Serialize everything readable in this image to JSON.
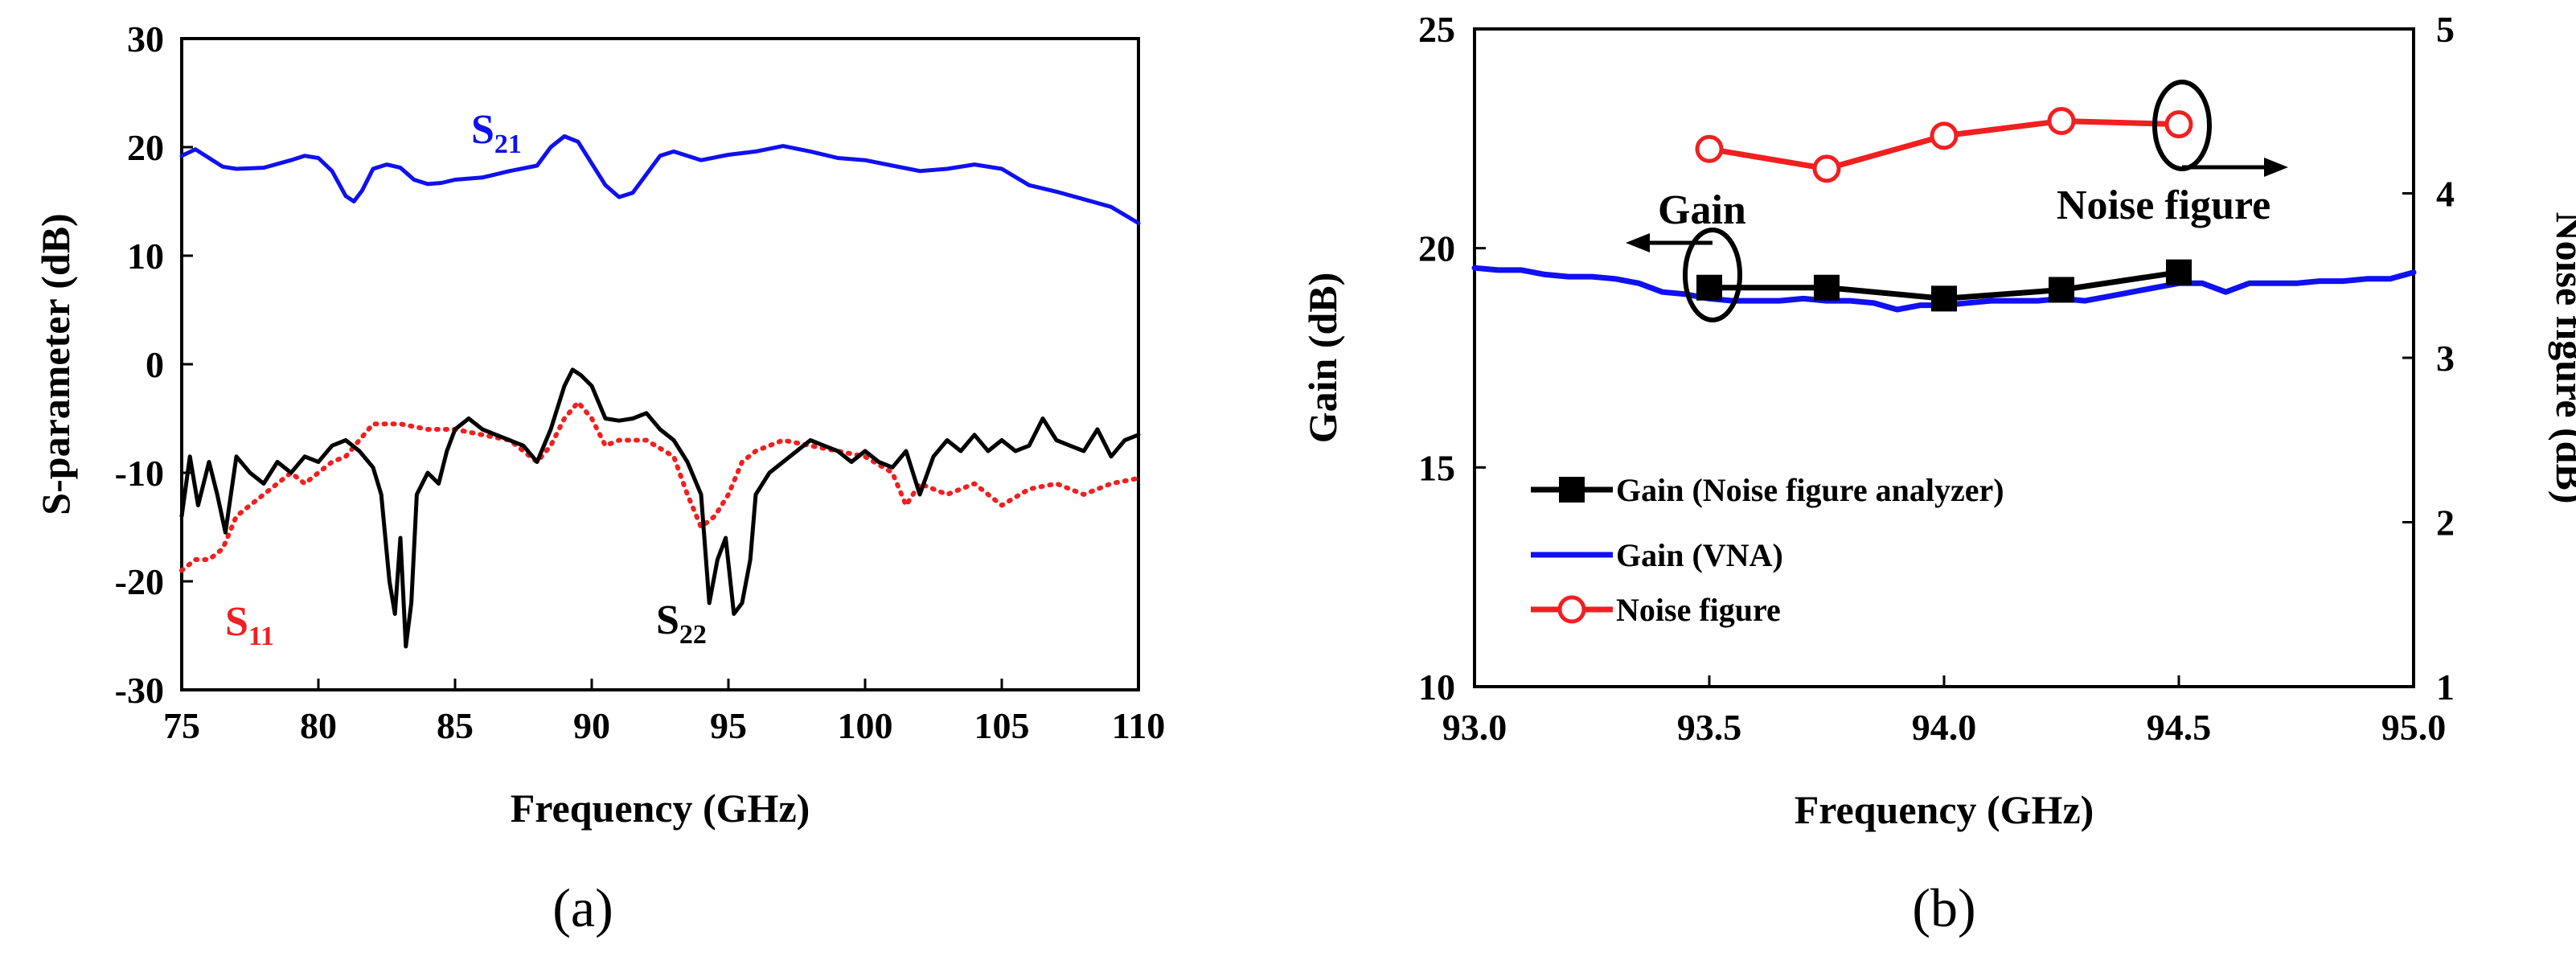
{
  "chart_data": [
    {
      "type": "line",
      "caption": "(a)",
      "xlabel": "Frequency (GHz)",
      "ylabel": "S-parameter (dB)",
      "xlim": [
        75,
        110
      ],
      "ylim": [
        -30,
        30
      ],
      "xticks": [
        "75",
        "80",
        "85",
        "90",
        "95",
        "100",
        "105",
        "110"
      ],
      "yticks": [
        "-30",
        "-20",
        "-10",
        "0",
        "10",
        "20",
        "30"
      ],
      "grid": false,
      "series": [
        {
          "name": "S21",
          "label_main": "S",
          "label_sub": "21",
          "color": "#1010f0",
          "style": "solid",
          "x": [
            75,
            75.5,
            76,
            76.5,
            77,
            78,
            79,
            79.5,
            80,
            80.5,
            81,
            81.3,
            81.6,
            82,
            82.5,
            83,
            83.5,
            84,
            84.5,
            85,
            86,
            87,
            88,
            88.5,
            89,
            89.5,
            90,
            90.5,
            91,
            91.5,
            92,
            92.5,
            93,
            94,
            95,
            96,
            97,
            98,
            99,
            100,
            101,
            102,
            103,
            104,
            105,
            106,
            107,
            108,
            109,
            110
          ],
          "y": [
            19.2,
            19.8,
            19.0,
            18.2,
            18.0,
            18.1,
            18.8,
            19.2,
            19.0,
            17.8,
            15.5,
            15.0,
            16.0,
            18.0,
            18.4,
            18.1,
            17.0,
            16.6,
            16.7,
            17.0,
            17.2,
            17.8,
            18.3,
            20.0,
            21.0,
            20.5,
            18.5,
            16.5,
            15.4,
            15.8,
            17.5,
            19.2,
            19.6,
            18.8,
            19.3,
            19.6,
            20.1,
            19.6,
            19.0,
            18.8,
            18.3,
            17.8,
            18.0,
            18.4,
            18.0,
            16.5,
            15.9,
            15.2,
            14.5,
            13.0
          ]
        },
        {
          "name": "S11",
          "label_main": "S",
          "label_sub": "11",
          "color": "#f02020",
          "style": "dotted",
          "x": [
            75,
            75.5,
            76,
            76.5,
            77,
            77.5,
            78,
            78.5,
            79,
            79.5,
            80,
            80.5,
            81,
            81.5,
            82,
            83,
            84,
            85,
            86,
            87,
            87.5,
            88,
            88.5,
            89,
            89.5,
            90,
            90.5,
            91,
            92,
            93,
            93.5,
            94,
            94.5,
            95,
            95.5,
            96,
            97,
            98,
            99,
            100,
            101,
            101.5,
            102,
            103,
            104,
            105,
            106,
            107,
            108,
            109,
            110
          ],
          "y": [
            -19,
            -18,
            -18,
            -17,
            -14,
            -13,
            -12,
            -11,
            -10,
            -11,
            -10,
            -9,
            -8.5,
            -7,
            -5.5,
            -5.5,
            -6,
            -6,
            -6.5,
            -7,
            -8,
            -9,
            -7.5,
            -5,
            -3.5,
            -5,
            -7.5,
            -7,
            -7,
            -8.5,
            -12,
            -15,
            -14,
            -12,
            -9,
            -8,
            -7,
            -7.5,
            -8,
            -8.5,
            -10,
            -13,
            -11,
            -12,
            -11,
            -13,
            -11.5,
            -11,
            -12,
            -11,
            -10.5
          ]
        },
        {
          "name": "S22",
          "label_main": "S",
          "label_sub": "22",
          "color": "#000000",
          "style": "solid",
          "x": [
            75,
            75.3,
            75.6,
            76,
            76.3,
            76.6,
            77,
            77.5,
            78,
            78.5,
            79,
            79.5,
            80,
            80.5,
            81,
            81.5,
            82,
            82.3,
            82.6,
            82.8,
            83,
            83.2,
            83.4,
            83.6,
            84,
            84.4,
            84.7,
            85,
            85.5,
            86,
            86.5,
            87,
            87.5,
            88,
            88.5,
            89,
            89.3,
            89.6,
            90,
            90.5,
            91,
            91.5,
            92,
            92.5,
            93,
            93.5,
            94,
            94.3,
            94.6,
            94.9,
            95.2,
            95.5,
            95.8,
            96,
            96.5,
            97,
            97.5,
            98,
            98.5,
            99,
            99.5,
            100,
            100.5,
            101,
            101.5,
            102,
            102.5,
            103,
            103.5,
            104,
            104.5,
            105,
            105.5,
            106,
            106.5,
            107,
            107.5,
            108,
            108.5,
            109,
            109.5,
            110
          ],
          "y": [
            -14,
            -8.5,
            -13,
            -9,
            -12,
            -15.5,
            -8.5,
            -10,
            -11,
            -9,
            -10,
            -8.5,
            -9,
            -7.5,
            -7,
            -8,
            -9.5,
            -12,
            -20,
            -23,
            -16,
            -26,
            -22,
            -12,
            -10,
            -11,
            -8,
            -6,
            -5,
            -6,
            -6.5,
            -7,
            -7.5,
            -9,
            -6,
            -2,
            -0.5,
            -1,
            -2,
            -5,
            -5.2,
            -5,
            -4.5,
            -6,
            -7,
            -9,
            -12,
            -22,
            -18,
            -16,
            -23,
            -22,
            -18,
            -12,
            -10,
            -9,
            -8,
            -7,
            -7.5,
            -8,
            -9,
            -8,
            -9,
            -9.5,
            -8,
            -12,
            -8.5,
            -7,
            -8,
            -6.5,
            -8,
            -7,
            -8,
            -7.5,
            -5,
            -7,
            -7.5,
            -8,
            -6,
            -8.5,
            -7,
            -6.5
          ]
        }
      ]
    },
    {
      "type": "line",
      "caption": "(b)",
      "xlabel": "Frequency (GHz)",
      "ylabel": "Gain (dB)",
      "ylabel_right": "Noise figure (dB)",
      "xlim": [
        93.0,
        95.0
      ],
      "ylim": [
        10,
        25
      ],
      "ylim_right": [
        1,
        5
      ],
      "xticks": [
        "93.0",
        "93.5",
        "94.0",
        "94.5",
        "95.0"
      ],
      "yticks": [
        "10",
        "15",
        "20",
        "25"
      ],
      "yticks_right": [
        "1",
        "2",
        "3",
        "4",
        "5"
      ],
      "grid": false,
      "legend_position": "bottom-left",
      "annotations": [
        "Gain",
        "Noise figure"
      ],
      "series": [
        {
          "name": "Gain (Noise figure analyzer)",
          "axis": "left",
          "color": "#000000",
          "marker": "square",
          "x": [
            93.5,
            93.75,
            94.0,
            94.25,
            94.5
          ],
          "y": [
            19.1,
            19.1,
            18.85,
            19.05,
            19.45
          ]
        },
        {
          "name": "Gain (VNA)",
          "axis": "left",
          "color": "#1010f0",
          "marker": "none",
          "x": [
            93.0,
            93.05,
            93.1,
            93.15,
            93.2,
            93.25,
            93.3,
            93.35,
            93.4,
            93.45,
            93.5,
            93.55,
            93.6,
            93.65,
            93.7,
            93.75,
            93.8,
            93.85,
            93.9,
            93.95,
            94.0,
            94.05,
            94.1,
            94.15,
            94.2,
            94.25,
            94.3,
            94.35,
            94.4,
            94.45,
            94.5,
            94.55,
            94.6,
            94.65,
            94.7,
            94.75,
            94.8,
            94.85,
            94.9,
            94.95,
            95.0
          ],
          "y": [
            19.55,
            19.5,
            19.5,
            19.4,
            19.35,
            19.35,
            19.3,
            19.2,
            19.0,
            18.95,
            18.85,
            18.8,
            18.8,
            18.8,
            18.85,
            18.8,
            18.8,
            18.75,
            18.6,
            18.7,
            18.7,
            18.75,
            18.8,
            18.8,
            18.8,
            18.85,
            18.8,
            18.9,
            19.0,
            19.1,
            19.2,
            19.2,
            19.0,
            19.2,
            19.2,
            19.2,
            19.25,
            19.25,
            19.3,
            19.3,
            19.45
          ]
        },
        {
          "name": "Noise figure",
          "axis": "right",
          "color": "#f02020",
          "marker": "circle",
          "x": [
            93.5,
            93.75,
            94.0,
            94.25,
            94.5
          ],
          "y": [
            4.27,
            4.15,
            4.35,
            4.44,
            4.42
          ]
        }
      ]
    }
  ]
}
